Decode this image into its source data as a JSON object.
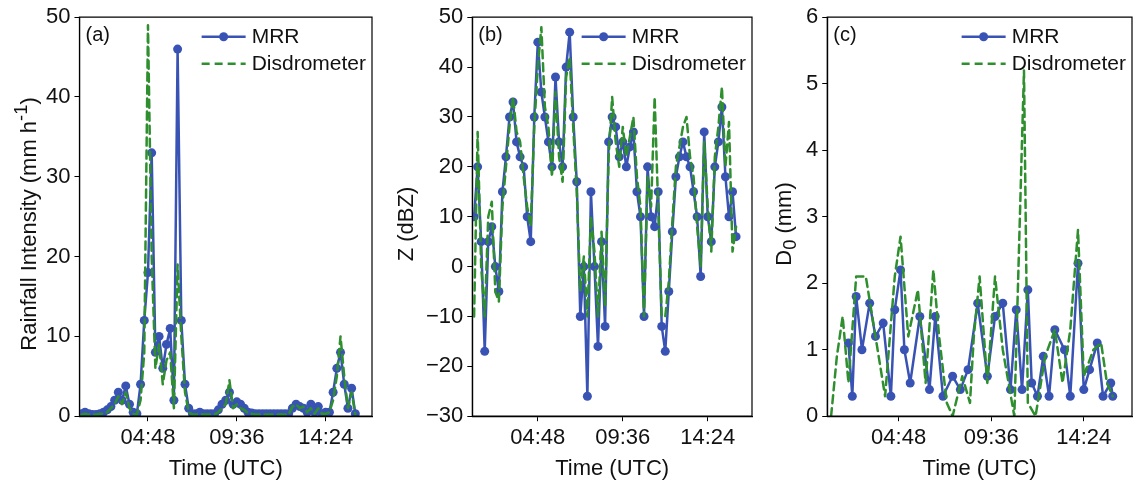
{
  "chart_data": [
    {
      "type": "line",
      "annotations": [
        "(a)"
      ],
      "xlabel": "Time (UTC)",
      "ylabel": "Rainfall Intensity (mm h$^{-1}$)",
      "legend": "top right",
      "xlim": [
        1.1,
        16.9
      ],
      "xticks": [
        {
          "value": 4.8,
          "label": "04:48"
        },
        {
          "value": 9.6,
          "label": "09:36"
        },
        {
          "value": 14.4,
          "label": "14:24"
        }
      ],
      "ylim": [
        0,
        50
      ],
      "yticks": [
        0,
        10,
        20,
        30,
        40,
        50
      ],
      "x": [
        1.2,
        1.4,
        1.6,
        1.8,
        2.0,
        2.2,
        2.4,
        2.6,
        2.8,
        3.0,
        3.2,
        3.4,
        3.6,
        3.8,
        4.0,
        4.2,
        4.4,
        4.6,
        4.8,
        5.0,
        5.2,
        5.4,
        5.6,
        5.8,
        6.0,
        6.2,
        6.4,
        6.6,
        6.8,
        7.0,
        7.2,
        7.4,
        7.6,
        7.8,
        8.0,
        8.2,
        8.4,
        8.6,
        8.8,
        9.0,
        9.2,
        9.4,
        9.6,
        9.8,
        10.0,
        10.2,
        10.4,
        10.6,
        10.8,
        11.0,
        11.2,
        11.4,
        11.6,
        11.8,
        12.0,
        12.2,
        12.4,
        12.6,
        12.8,
        13.0,
        13.2,
        13.4,
        13.6,
        13.8,
        14.0,
        14.2,
        14.4,
        14.6,
        14.8,
        15.0,
        15.2,
        15.4,
        15.6,
        15.8,
        16.0
      ],
      "series": [
        {
          "name": "MRR",
          "color": "#3953b5",
          "marker": "circle",
          "line_style": "solid",
          "values": [
            0.3,
            0.5,
            0.3,
            0.2,
            0.2,
            0.3,
            0.5,
            0.8,
            1.2,
            2,
            3,
            2,
            3.8,
            1.5,
            0.5,
            0.3,
            4,
            12,
            18,
            33,
            8,
            10,
            6,
            9,
            11,
            2,
            46,
            12,
            4,
            1,
            0.3,
            0.3,
            0.5,
            0.3,
            0.3,
            0.3,
            0.3,
            0.8,
            1.5,
            2,
            3,
            1.5,
            1.8,
            1.5,
            1,
            0.5,
            0.4,
            0.3,
            0.3,
            0.3,
            0.3,
            0.3,
            0.3,
            0.3,
            0.3,
            0.3,
            0.3,
            1,
            1.5,
            1.2,
            1,
            0.5,
            1.5,
            0.5,
            1.2,
            0.3,
            0.5,
            0.5,
            3,
            6,
            8,
            4,
            1,
            3.5,
            0.3
          ]
        },
        {
          "name": "Disdrometer",
          "color": "#2f8f2f",
          "marker": "none",
          "line_style": "dashed",
          "values": [
            0.2,
            0.3,
            0.2,
            0.2,
            0.2,
            0.3,
            0.3,
            0.5,
            1,
            1.5,
            2.5,
            1.5,
            3,
            1,
            0.3,
            0.2,
            2,
            8,
            49,
            20,
            6,
            9,
            4,
            7,
            8,
            1,
            19,
            10,
            3,
            0.5,
            0.2,
            0.2,
            0.3,
            0.2,
            0.2,
            0.2,
            0.2,
            0.5,
            1,
            1.5,
            4.5,
            1,
            1.5,
            1,
            0.8,
            0.4,
            0.3,
            0.2,
            0.2,
            0.2,
            0.2,
            0.2,
            0.2,
            0.2,
            0.2,
            0.2,
            0.2,
            1.2,
            1.5,
            1,
            1.2,
            0.5,
            1,
            0.3,
            1,
            0.3,
            0.3,
            0.5,
            2,
            5,
            10,
            5,
            1,
            3,
            0.2
          ]
        }
      ]
    },
    {
      "type": "line",
      "annotations": [
        "(b)"
      ],
      "xlabel": "Time (UTC)",
      "ylabel": "Z (dBZ)",
      "legend": "top right",
      "xlim": [
        1.1,
        16.9
      ],
      "xticks": [
        {
          "value": 4.8,
          "label": "04:48"
        },
        {
          "value": 9.6,
          "label": "09:36"
        },
        {
          "value": 14.4,
          "label": "14:24"
        }
      ],
      "ylim": [
        -30,
        50
      ],
      "yticks": [
        -30,
        -20,
        -10,
        0,
        10,
        20,
        30,
        40,
        50
      ],
      "x": [
        1.2,
        1.4,
        1.6,
        1.8,
        2.0,
        2.2,
        2.4,
        2.6,
        2.8,
        3.0,
        3.2,
        3.4,
        3.6,
        3.8,
        4.0,
        4.2,
        4.4,
        4.6,
        4.8,
        5.0,
        5.2,
        5.4,
        5.6,
        5.8,
        6.0,
        6.2,
        6.4,
        6.6,
        6.8,
        7.0,
        7.2,
        7.4,
        7.6,
        7.8,
        8.0,
        8.2,
        8.4,
        8.6,
        8.8,
        9.0,
        9.2,
        9.4,
        9.6,
        9.8,
        10.0,
        10.2,
        10.4,
        10.6,
        10.8,
        11.0,
        11.2,
        11.4,
        11.6,
        11.8,
        12.0,
        12.2,
        12.4,
        12.6,
        12.8,
        13.0,
        13.2,
        13.4,
        13.6,
        13.8,
        14.0,
        14.2,
        14.4,
        14.6,
        14.8,
        15.0,
        15.2,
        15.4,
        15.6,
        15.8,
        16.0
      ],
      "series": [
        {
          "name": "MRR",
          "color": "#3953b5",
          "marker": "circle",
          "line_style": "solid",
          "values": [
            10,
            20,
            5,
            -17,
            5,
            8,
            0,
            -5,
            15,
            22,
            30,
            33,
            25,
            22,
            20,
            10,
            5,
            30,
            45,
            35,
            30,
            25,
            20,
            38,
            25,
            20,
            40,
            47,
            30,
            17,
            -10,
            0,
            -26,
            15,
            0,
            -16,
            5,
            -12,
            25,
            30,
            28,
            22,
            25,
            20,
            24,
            27,
            15,
            10,
            -10,
            20,
            10,
            8,
            15,
            -12,
            -17,
            -5,
            7,
            18,
            22,
            25,
            22,
            20,
            15,
            10,
            -2,
            27,
            10,
            5,
            20,
            25,
            32,
            18,
            10,
            15,
            6
          ]
        },
        {
          "name": "Disdrometer",
          "color": "#2f8f2f",
          "marker": "none",
          "line_style": "dashed",
          "values": [
            -10,
            27,
            0,
            -10,
            10,
            13,
            -5,
            -7,
            12,
            20,
            28,
            34,
            27,
            25,
            18,
            12,
            8,
            28,
            40,
            48,
            32,
            28,
            18,
            35,
            22,
            17,
            38,
            42,
            28,
            15,
            -5,
            2,
            -10,
            10,
            3,
            -10,
            7,
            -8,
            22,
            34,
            25,
            20,
            28,
            22,
            26,
            30,
            18,
            12,
            -10,
            18,
            12,
            34,
            12,
            -10,
            -10,
            -3,
            9,
            20,
            24,
            28,
            30,
            22,
            18,
            8,
            0,
            25,
            12,
            3,
            22,
            28,
            36,
            20,
            29,
            3,
            8
          ]
        }
      ]
    },
    {
      "type": "line",
      "annotations": [
        "(c)"
      ],
      "xlabel": "Time (UTC)",
      "ylabel": "D$_{0}$ (mm)",
      "legend": "top right",
      "xlim": [
        1.1,
        16.9
      ],
      "xticks": [
        {
          "value": 4.8,
          "label": "04:48"
        },
        {
          "value": 9.6,
          "label": "09:36"
        },
        {
          "value": 14.4,
          "label": "14:24"
        }
      ],
      "ylim": [
        0,
        6
      ],
      "yticks": [
        0,
        1,
        2,
        3,
        4,
        5,
        6
      ],
      "series": [
        {
          "name": "MRR",
          "color": "#3953b5",
          "marker": "circle",
          "line_style": "solid",
          "x": [
            2.2,
            2.4,
            2.6,
            2.9,
            3.3,
            3.6,
            4.0,
            4.4,
            4.6,
            4.9,
            5.1,
            5.4,
            5.9,
            6.4,
            6.7,
            7.1,
            7.6,
            8.0,
            8.4,
            8.9,
            9.4,
            9.8,
            10.2,
            10.6,
            10.9,
            11.2,
            11.5,
            11.7,
            12.0,
            12.3,
            12.6,
            12.9,
            13.4,
            13.7,
            14.1,
            14.4,
            14.7,
            15.1,
            15.4,
            15.8,
            15.9
          ],
          "values": [
            1.1,
            0.3,
            1.8,
            1.0,
            1.7,
            1.2,
            1.4,
            0.3,
            1.6,
            2.2,
            1.0,
            0.5,
            1.5,
            0.4,
            1.5,
            0.3,
            0.6,
            0.4,
            0.7,
            1.7,
            0.6,
            1.5,
            1.7,
            0.4,
            1.6,
            0.4,
            1.9,
            0.5,
            0.3,
            0.9,
            0.3,
            1.3,
            1.0,
            0.3,
            2.3,
            0.4,
            0.7,
            1.1,
            0.3,
            0.5,
            0.3
          ]
        },
        {
          "name": "Disdrometer",
          "color": "#2f8f2f",
          "marker": "none",
          "line_style": "dashed",
          "x": [
            1.3,
            1.6,
            1.9,
            2.2,
            2.6,
            3.1,
            3.6,
            4.1,
            4.6,
            4.9,
            5.3,
            5.8,
            6.2,
            6.6,
            6.9,
            7.3,
            7.6,
            8.1,
            8.5,
            8.7,
            9.0,
            9.4,
            9.8,
            10.2,
            10.8,
            11.3,
            11.5,
            11.9,
            12.4,
            12.9,
            13.3,
            13.7,
            14.1,
            14.4,
            14.9,
            15.3,
            15.6,
            15.9
          ],
          "values": [
            0,
            0.9,
            1.5,
            0.5,
            2.1,
            2.1,
            1.2,
            0.3,
            2.1,
            2.7,
            1.2,
            1.9,
            0.5,
            2.2,
            1.2,
            0.2,
            0,
            0.6,
            0.2,
            1.2,
            2.1,
            0.5,
            2.1,
            1.0,
            0,
            5.2,
            0.2,
            0,
            0.9,
            1.3,
            0.5,
            1.3,
            2.8,
            0.6,
            1.0,
            1.1,
            0.5,
            0.3
          ]
        }
      ]
    }
  ]
}
